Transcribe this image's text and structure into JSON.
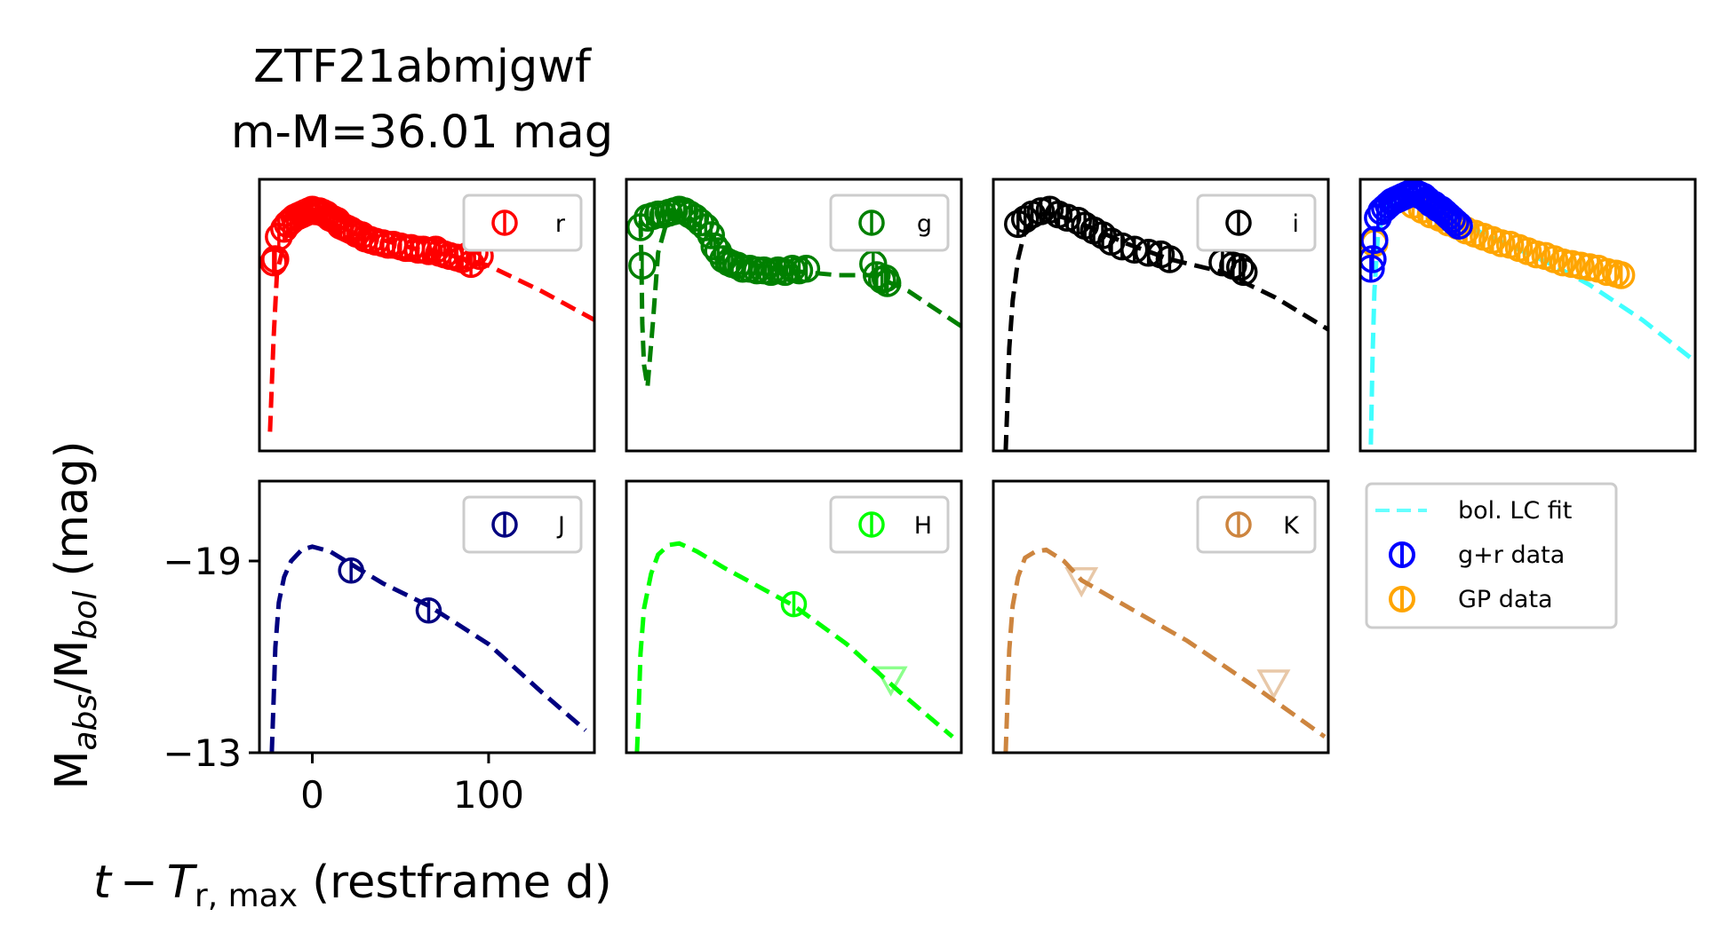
{
  "chart_data": {
    "type": "scatter",
    "title_lines": [
      "ZTF21abmjgwf",
      "m-M=36.01 mag"
    ],
    "xlabel_parts": {
      "t": "t",
      "minus": "−",
      "T": "T",
      "sub": "r, max",
      "rest": " (restframe d)"
    },
    "ylabel_parts": {
      "M1": "M",
      "sub1": "abs",
      "slash": "/M",
      "sub2": "bol",
      "rest": " (mag)"
    },
    "xlim": [
      -30,
      160
    ],
    "ylim": [
      -13,
      -21.5
    ],
    "x_ticks": [
      0,
      100
    ],
    "x_tick_labels": [
      "0",
      "100"
    ],
    "y_ticks": [
      -19,
      -13
    ],
    "y_tick_labels": [
      "−19",
      "−13"
    ],
    "grid": false,
    "panels": [
      {
        "band": "r",
        "legend": "r",
        "color": "#ff0000",
        "fit": [
          [
            -24,
            -13.6
          ],
          [
            -22,
            -16.5
          ],
          [
            -20,
            -18.6
          ],
          [
            -15,
            -19.7
          ],
          [
            -8,
            -20.3
          ],
          [
            0,
            -20.6
          ],
          [
            10,
            -20.4
          ],
          [
            25,
            -20.0
          ],
          [
            40,
            -19.6
          ],
          [
            60,
            -19.3
          ],
          [
            80,
            -19.1
          ],
          [
            100,
            -18.8
          ],
          [
            130,
            -18.0
          ],
          [
            160,
            -17.1
          ]
        ],
        "points": [
          [
            -22,
            -18.9
          ],
          [
            -21,
            -19.0
          ],
          [
            -19,
            -19.7
          ],
          [
            -16,
            -19.95
          ],
          [
            -14,
            -20.1
          ],
          [
            -12,
            -20.2
          ],
          [
            -10,
            -20.3
          ],
          [
            -8,
            -20.35
          ],
          [
            -6,
            -20.4
          ],
          [
            -4,
            -20.45
          ],
          [
            -2,
            -20.5
          ],
          [
            0,
            -20.55
          ],
          [
            2,
            -20.5
          ],
          [
            4,
            -20.5
          ],
          [
            6,
            -20.45
          ],
          [
            8,
            -20.4
          ],
          [
            10,
            -20.3
          ],
          [
            12,
            -20.25
          ],
          [
            14,
            -20.2
          ],
          [
            16,
            -20.05
          ],
          [
            18,
            -20.0
          ],
          [
            20,
            -19.95
          ],
          [
            22,
            -19.9
          ],
          [
            25,
            -19.8
          ],
          [
            28,
            -19.75
          ],
          [
            30,
            -19.65
          ],
          [
            33,
            -19.6
          ],
          [
            36,
            -19.55
          ],
          [
            40,
            -19.5
          ],
          [
            43,
            -19.45
          ],
          [
            46,
            -19.45
          ],
          [
            50,
            -19.4
          ],
          [
            53,
            -19.35
          ],
          [
            56,
            -19.35
          ],
          [
            60,
            -19.3
          ],
          [
            63,
            -19.3
          ],
          [
            66,
            -19.25
          ],
          [
            70,
            -19.3
          ],
          [
            72,
            -19.2
          ],
          [
            75,
            -19.15
          ],
          [
            78,
            -19.1
          ],
          [
            82,
            -19.05
          ],
          [
            85,
            -19.0
          ],
          [
            88,
            -19.1
          ],
          [
            90,
            -18.85
          ],
          [
            92,
            -19.2
          ],
          [
            95,
            -19.1
          ]
        ],
        "limits": []
      },
      {
        "band": "g",
        "legend": "g",
        "color": "#008000",
        "fit": [
          [
            -22,
            -20.2
          ],
          [
            -21.5,
            -19.0
          ],
          [
            -21,
            -17.0
          ],
          [
            -20,
            -15.7
          ],
          [
            -18,
            -15.0
          ],
          [
            -15,
            -17.0
          ],
          [
            -12,
            -19.2
          ],
          [
            -8,
            -20.0
          ],
          [
            -4,
            -20.4
          ],
          [
            0,
            -20.45
          ],
          [
            5,
            -20.35
          ],
          [
            10,
            -20.1
          ],
          [
            20,
            -19.6
          ],
          [
            35,
            -19.0
          ],
          [
            50,
            -18.7
          ],
          [
            70,
            -18.6
          ],
          [
            90,
            -18.5
          ],
          [
            110,
            -18.5
          ],
          [
            130,
            -18.0
          ],
          [
            160,
            -16.9
          ]
        ],
        "points": [
          [
            -22,
            -20.0
          ],
          [
            -21,
            -18.8
          ],
          [
            -18,
            -20.3
          ],
          [
            -15,
            -20.35
          ],
          [
            -12,
            -20.4
          ],
          [
            -9,
            -20.4
          ],
          [
            -6,
            -20.45
          ],
          [
            -3,
            -20.5
          ],
          [
            0,
            -20.55
          ],
          [
            3,
            -20.5
          ],
          [
            6,
            -20.4
          ],
          [
            9,
            -20.3
          ],
          [
            12,
            -20.15
          ],
          [
            15,
            -20.0
          ],
          [
            18,
            -19.75
          ],
          [
            20,
            -19.4
          ],
          [
            22,
            -19.25
          ],
          [
            25,
            -19.0
          ],
          [
            28,
            -18.9
          ],
          [
            30,
            -18.85
          ],
          [
            33,
            -18.8
          ],
          [
            36,
            -18.7
          ],
          [
            40,
            -18.7
          ],
          [
            44,
            -18.65
          ],
          [
            48,
            -18.65
          ],
          [
            52,
            -18.6
          ],
          [
            56,
            -18.65
          ],
          [
            60,
            -18.6
          ],
          [
            64,
            -18.7
          ],
          [
            68,
            -18.65
          ],
          [
            72,
            -18.7
          ],
          [
            110,
            -18.85
          ],
          [
            112,
            -18.5
          ],
          [
            115,
            -18.35
          ],
          [
            117,
            -18.4
          ],
          [
            118,
            -18.25
          ]
        ],
        "limits": []
      },
      {
        "band": "i",
        "legend": "i",
        "color": "#000000",
        "fit": [
          [
            -23,
            -13.0
          ],
          [
            -22,
            -14.5
          ],
          [
            -21,
            -16.2
          ],
          [
            -19,
            -17.7
          ],
          [
            -16,
            -19.0
          ],
          [
            -12,
            -19.9
          ],
          [
            -6,
            -20.3
          ],
          [
            0,
            -20.45
          ],
          [
            10,
            -20.3
          ],
          [
            25,
            -20.0
          ],
          [
            45,
            -19.5
          ],
          [
            70,
            -19.0
          ],
          [
            100,
            -18.6
          ],
          [
            130,
            -17.8
          ],
          [
            160,
            -16.8
          ]
        ],
        "points": [
          [
            -16,
            -20.1
          ],
          [
            -12,
            -20.25
          ],
          [
            -8,
            -20.4
          ],
          [
            -3,
            -20.5
          ],
          [
            2,
            -20.55
          ],
          [
            7,
            -20.4
          ],
          [
            12,
            -20.3
          ],
          [
            18,
            -20.2
          ],
          [
            22,
            -20.05
          ],
          [
            27,
            -19.9
          ],
          [
            32,
            -19.75
          ],
          [
            37,
            -19.55
          ],
          [
            43,
            -19.4
          ],
          [
            50,
            -19.3
          ],
          [
            58,
            -19.2
          ],
          [
            65,
            -19.15
          ],
          [
            70,
            -19.0
          ],
          [
            100,
            -18.9
          ],
          [
            106,
            -18.8
          ],
          [
            110,
            -18.75
          ],
          [
            112,
            -18.6
          ]
        ],
        "limits": []
      },
      {
        "band": "bol",
        "legend": "",
        "color": "#00ffff",
        "fit": [
          [
            -24,
            -13.2
          ],
          [
            -23,
            -16.0
          ],
          [
            -22,
            -18.0
          ],
          [
            -20,
            -19.7
          ],
          [
            -16,
            -20.6
          ],
          [
            -10,
            -20.9
          ],
          [
            -4,
            -21.0
          ],
          [
            0,
            -20.95
          ],
          [
            8,
            -20.7
          ],
          [
            20,
            -20.3
          ],
          [
            40,
            -19.8
          ],
          [
            60,
            -19.3
          ],
          [
            80,
            -18.8
          ],
          [
            100,
            -18.2
          ],
          [
            130,
            -17.1
          ],
          [
            160,
            -15.8
          ]
        ],
        "points": [],
        "gr_points": [
          [
            -24,
            -18.7
          ],
          [
            -23,
            -19.0
          ],
          [
            -22,
            -19.6
          ],
          [
            -20,
            -20.3
          ],
          [
            -18,
            -20.5
          ],
          [
            -16,
            -20.6
          ],
          [
            -14,
            -20.7
          ],
          [
            -12,
            -20.8
          ],
          [
            -10,
            -20.85
          ],
          [
            -8,
            -20.9
          ],
          [
            -6,
            -20.95
          ],
          [
            -4,
            -21.0
          ],
          [
            -2,
            -21.05
          ],
          [
            0,
            -21.1
          ],
          [
            2,
            -21.05
          ],
          [
            4,
            -21.0
          ],
          [
            6,
            -20.95
          ],
          [
            8,
            -20.85
          ],
          [
            10,
            -20.75
          ],
          [
            12,
            -20.7
          ],
          [
            14,
            -20.6
          ],
          [
            16,
            -20.55
          ],
          [
            18,
            -20.45
          ],
          [
            20,
            -20.35
          ],
          [
            22,
            -20.25
          ],
          [
            24,
            -20.15
          ],
          [
            26,
            -20.05
          ]
        ],
        "gp_points": [
          [
            -22,
            -19.5
          ],
          [
            0,
            -20.7
          ],
          [
            5,
            -20.55
          ],
          [
            10,
            -20.4
          ],
          [
            15,
            -20.3
          ],
          [
            20,
            -20.15
          ],
          [
            25,
            -20.05
          ],
          [
            30,
            -19.9
          ],
          [
            35,
            -19.8
          ],
          [
            40,
            -19.7
          ],
          [
            45,
            -19.6
          ],
          [
            50,
            -19.5
          ],
          [
            55,
            -19.45
          ],
          [
            60,
            -19.35
          ],
          [
            65,
            -19.25
          ],
          [
            70,
            -19.15
          ],
          [
            75,
            -19.1
          ],
          [
            80,
            -19.0
          ],
          [
            85,
            -18.9
          ],
          [
            90,
            -18.85
          ],
          [
            95,
            -18.8
          ],
          [
            100,
            -18.75
          ],
          [
            105,
            -18.7
          ],
          [
            110,
            -18.6
          ],
          [
            115,
            -18.55
          ],
          [
            118,
            -18.5
          ]
        ],
        "limits": []
      },
      {
        "band": "J",
        "legend": "J",
        "color": "#000080",
        "fit": [
          [
            -23,
            -13.0
          ],
          [
            -22,
            -14.6
          ],
          [
            -21,
            -16.3
          ],
          [
            -19,
            -17.7
          ],
          [
            -16,
            -18.5
          ],
          [
            -12,
            -19.0
          ],
          [
            -6,
            -19.35
          ],
          [
            0,
            -19.45
          ],
          [
            10,
            -19.3
          ],
          [
            22,
            -18.9
          ],
          [
            40,
            -18.3
          ],
          [
            66,
            -17.6
          ],
          [
            100,
            -16.4
          ],
          [
            130,
            -14.9
          ],
          [
            155,
            -13.7
          ]
        ],
        "points": [
          [
            22,
            -18.7
          ],
          [
            66,
            -17.45
          ]
        ],
        "limits": []
      },
      {
        "band": "H",
        "legend": "H",
        "color": "#00ff00",
        "fit": [
          [
            -24,
            -13.0
          ],
          [
            -23,
            -14.4
          ],
          [
            -22,
            -16.1
          ],
          [
            -20,
            -17.5
          ],
          [
            -16,
            -18.6
          ],
          [
            -12,
            -19.2
          ],
          [
            -6,
            -19.5
          ],
          [
            0,
            -19.55
          ],
          [
            10,
            -19.3
          ],
          [
            25,
            -18.8
          ],
          [
            45,
            -18.2
          ],
          [
            65,
            -17.6
          ],
          [
            95,
            -16.4
          ],
          [
            125,
            -14.9
          ],
          [
            155,
            -13.5
          ]
        ],
        "points": [
          [
            65,
            -17.65
          ]
        ],
        "limits": [
          [
            120,
            -15.3
          ]
        ]
      },
      {
        "band": "K",
        "legend": "K",
        "color": "#cd853f",
        "fit": [
          [
            -23,
            -13.0
          ],
          [
            -22,
            -14.6
          ],
          [
            -21,
            -16.2
          ],
          [
            -19,
            -17.6
          ],
          [
            -16,
            -18.5
          ],
          [
            -12,
            -19.1
          ],
          [
            -6,
            -19.3
          ],
          [
            0,
            -19.35
          ],
          [
            10,
            -19.0
          ],
          [
            20,
            -18.4
          ],
          [
            45,
            -17.6
          ],
          [
            80,
            -16.5
          ],
          [
            120,
            -15.0
          ],
          [
            158,
            -13.5
          ]
        ],
        "points": [],
        "limits": [
          [
            20,
            -18.4
          ],
          [
            129,
            -15.2
          ]
        ]
      }
    ],
    "bol_legend": {
      "fit_label": "bol. LC fit",
      "gr_label": "g+r data",
      "gp_label": "GP data",
      "gr_color": "#0000ff",
      "gp_color": "#ffa500"
    }
  }
}
